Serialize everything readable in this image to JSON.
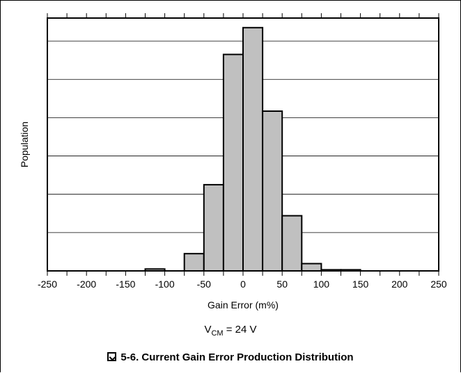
{
  "chart_data": {
    "type": "bar",
    "x_tick_labels": [
      "-250",
      "-200",
      "-150",
      "-100",
      "-50",
      "0",
      "50",
      "100",
      "150",
      "200",
      "250"
    ],
    "x_ticks": [
      -250,
      -200,
      -150,
      -100,
      -50,
      0,
      50,
      100,
      150,
      200,
      250
    ],
    "xlim": [
      -250,
      250
    ],
    "bin_width": 25,
    "bins": [
      {
        "x0": -125,
        "x1": -100,
        "value": 0.5
      },
      {
        "x0": -75,
        "x1": -50,
        "value": 4.5
      },
      {
        "x0": -50,
        "x1": -25,
        "value": 22.5
      },
      {
        "x0": -25,
        "x1": 0,
        "value": 56.5
      },
      {
        "x0": 0,
        "x1": 25,
        "value": 63.5
      },
      {
        "x0": 25,
        "x1": 50,
        "value": 41.7
      },
      {
        "x0": 50,
        "x1": 75,
        "value": 14.4
      },
      {
        "x0": 75,
        "x1": 100,
        "value": 1.9
      },
      {
        "x0": 100,
        "x1": 125,
        "value": 0.3
      },
      {
        "x0": 125,
        "x1": 150,
        "value": 0.3
      }
    ],
    "ylim": [
      0,
      66
    ],
    "y_gridlines": [
      10,
      20,
      30,
      40,
      50,
      60
    ],
    "xlabel": "Gain Error (m%)",
    "ylabel": "Population",
    "grid": "horizontal",
    "bar_color": "#c0c0c0",
    "bar_edge_color": "#000000"
  },
  "condition": {
    "prefix": "V",
    "subscript": "CM",
    "suffix": " = 24 V"
  },
  "caption": {
    "text": "5-6. Current Gain Error Production Distribution"
  }
}
